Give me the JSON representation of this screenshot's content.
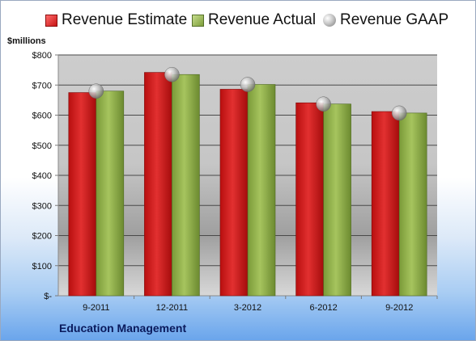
{
  "chart_data": {
    "type": "bar",
    "title": "",
    "ylabel": "$millions",
    "categories": [
      "9-2011",
      "12-2011",
      "3-2012",
      "6-2012",
      "9-2012"
    ],
    "series": [
      {
        "name": "Revenue Estimate",
        "kind": "bar",
        "color": "#d42020",
        "values": [
          675,
          742,
          686,
          641,
          612
        ]
      },
      {
        "name": "Revenue Actual",
        "kind": "bar",
        "color": "#8fb04c",
        "values": [
          680,
          735,
          702,
          637,
          607
        ]
      },
      {
        "name": "Revenue GAAP",
        "kind": "marker",
        "color": "#a0a0a0",
        "values": [
          680,
          735,
          702,
          637,
          607
        ]
      }
    ],
    "ylim": [
      0,
      800
    ],
    "yticks": [
      0,
      100,
      200,
      300,
      400,
      500,
      600,
      700,
      800
    ],
    "yticklabels": [
      "$-",
      "$100",
      "$200",
      "$300",
      "$400",
      "$500",
      "$600",
      "$700",
      "$800"
    ],
    "grid": true,
    "legend": "top"
  },
  "footer": {
    "company": "Education Management"
  }
}
